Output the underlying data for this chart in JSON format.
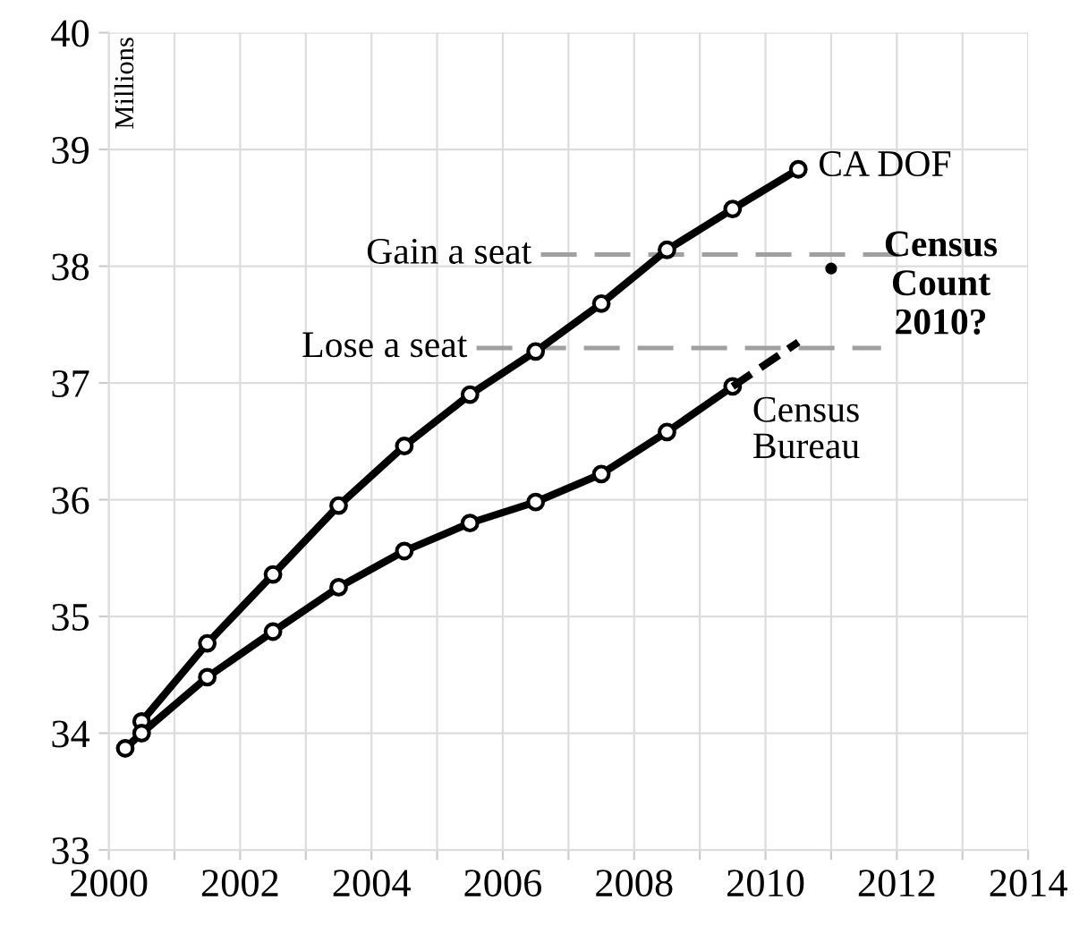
{
  "chart_data": {
    "type": "line",
    "ylabel": "Millions",
    "series": [
      {
        "name": "CA DOF",
        "color": "#000000",
        "marker": "circle",
        "x": [
          2000.5,
          2001.5,
          2002.5,
          2003.5,
          2004.5,
          2005.5,
          2006.5,
          2007.5,
          2008.5,
          2009.5,
          2010.5
        ],
        "values": [
          34.1,
          34.77,
          35.36,
          35.95,
          36.46,
          36.9,
          37.27,
          37.68,
          38.14,
          38.49,
          38.83
        ]
      },
      {
        "name": "Census\nBureau",
        "color": "#000000",
        "marker": "circle",
        "x": [
          2000.25,
          2000.5,
          2001.5,
          2002.5,
          2003.5,
          2004.5,
          2005.5,
          2006.5,
          2007.5,
          2008.5,
          2009.5
        ],
        "values": [
          33.87,
          34.0,
          34.48,
          34.87,
          35.25,
          35.56,
          35.8,
          35.98,
          36.22,
          36.58,
          36.97
        ]
      },
      {
        "type": "line",
        "color": "#000000",
        "marker": "none",
        "line_style": "dashed",
        "x": [
          2009.5,
          2010.5
        ],
        "values": [
          36.97,
          37.35
        ]
      },
      {
        "type": "scatter",
        "color": "#000000",
        "marker": "circle",
        "x": [
          2011.0
        ],
        "values": [
          37.98
        ]
      }
    ],
    "ref_lines": [
      {
        "axis": "y",
        "value": 38.1,
        "label": "Gain a seat",
        "color": "#a0a0a0",
        "line_style": "dashed"
      },
      {
        "axis": "y",
        "value": 37.3,
        "label": "Lose a seat",
        "color": "#a0a0a0",
        "line_style": "dashed"
      }
    ],
    "annotations": [
      "Census\nCount\n2010?"
    ],
    "xlim": [
      2000,
      2014
    ],
    "xticks": [
      2000,
      {
        "value": 2001,
        "label": null
      },
      2002,
      {
        "value": 2003,
        "label": null
      },
      2004,
      {
        "value": 2005,
        "label": null
      },
      2006,
      {
        "value": 2007,
        "label": null
      },
      2008,
      {
        "value": 2009,
        "label": null
      },
      2010,
      {
        "value": 2011,
        "label": null
      },
      2012,
      {
        "value": 2013,
        "label": null
      },
      2014
    ],
    "ylim": [
      33,
      40
    ],
    "yticks": [
      33,
      34,
      35,
      36,
      37,
      38,
      39,
      40
    ],
    "grid": true,
    "legend": false
  }
}
